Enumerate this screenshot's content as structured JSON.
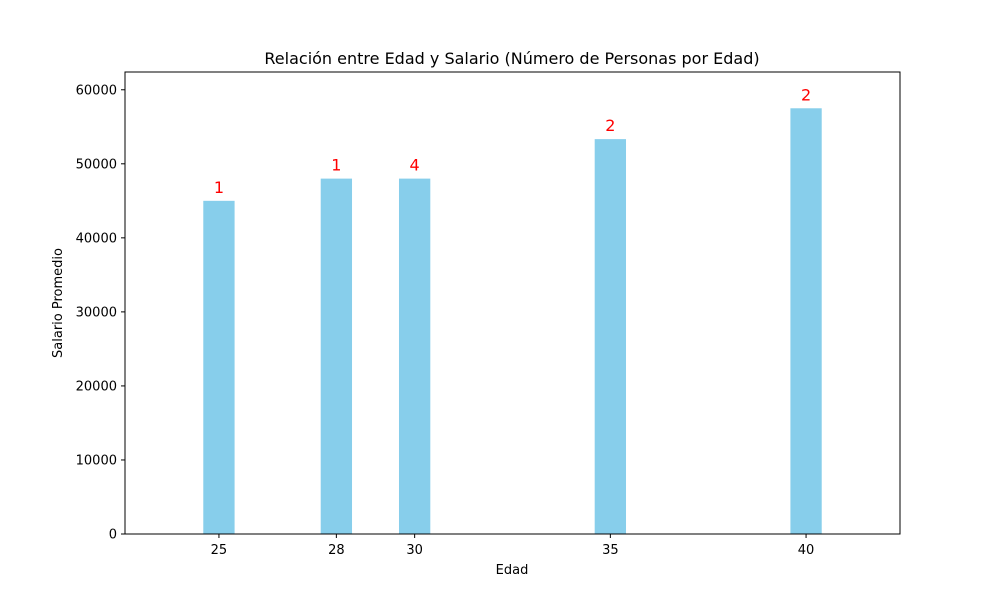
{
  "chart_data": {
    "type": "bar",
    "title": "Relación entre Edad y Salario (Número de Personas por Edad)",
    "xlabel": "Edad",
    "ylabel": "Salario Promedio",
    "x": [
      25,
      28,
      30,
      35,
      40
    ],
    "values": [
      45000,
      48000,
      48000,
      53333,
      57500
    ],
    "data_labels": [
      "1",
      "1",
      "4",
      "2",
      "2"
    ],
    "xlim": [
      22.6,
      42.4
    ],
    "ylim": [
      0,
      62400
    ],
    "yticks": [
      0,
      10000,
      20000,
      30000,
      40000,
      50000,
      60000
    ],
    "bar_width_data_units": 0.8,
    "grid": false,
    "bar_color": "#87CEEB",
    "label_color": "#FF0000"
  }
}
